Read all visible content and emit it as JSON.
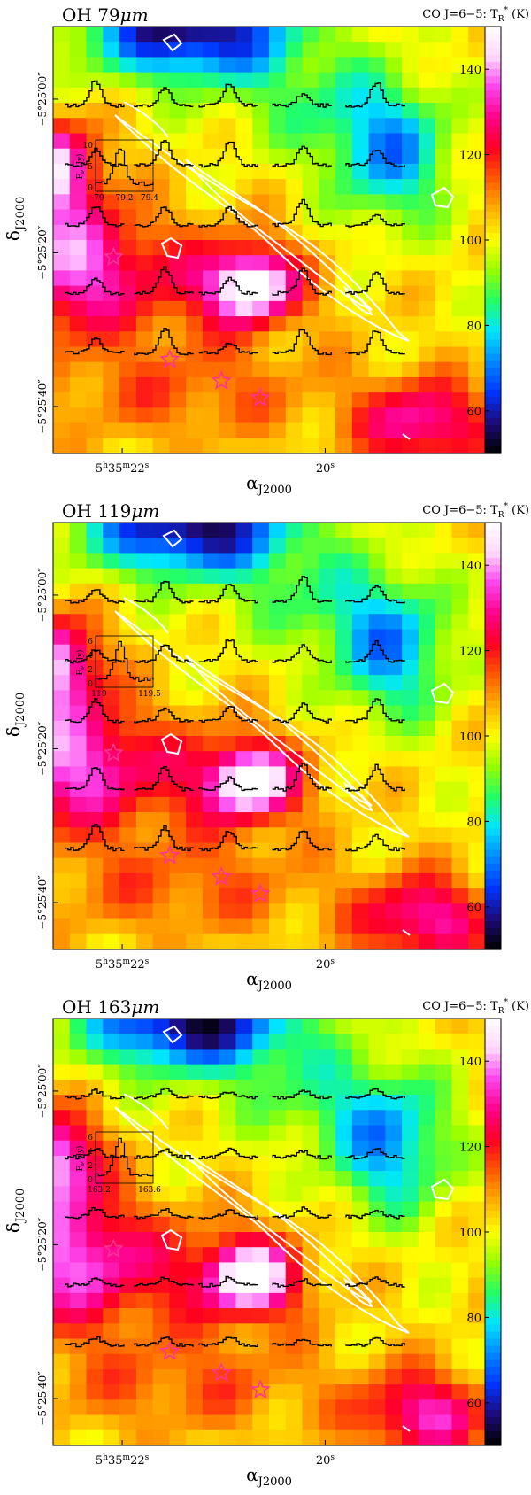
{
  "figure": {
    "background": "#ffffff"
  },
  "colorscale": {
    "label": "CO J=6−5: T",
    "label_sub": "R",
    "label_sup": "*",
    "label_unit": " (K)",
    "ticks": [
      60,
      80,
      100,
      120,
      140
    ],
    "range": [
      50,
      150
    ],
    "stops": [
      "#000000",
      "#1e0a78",
      "#0033ff",
      "#0088ff",
      "#00e5ff",
      "#22ff66",
      "#99ff00",
      "#ffff00",
      "#ffb000",
      "#ff5a00",
      "#ff0020",
      "#ff0088",
      "#ff44ee",
      "#ffd8ff",
      "#ffffff"
    ]
  },
  "axes": {
    "ylabel": "δ",
    "ylabel_sub": "J2000",
    "xlabel": "α",
    "xlabel_sub": "J2000",
    "xticks": [
      {
        "h": "5",
        "hs": "h",
        "m": "35",
        "ms": "m",
        "s": "22",
        "ss": "s",
        "frac": 0.16
      },
      {
        "h": "",
        "hs": "",
        "m": "",
        "ms": "",
        "s": "20",
        "ss": "s",
        "frac": 0.63
      }
    ],
    "yticks": [
      {
        "label": "−5°25′00″",
        "frac": 0.17
      },
      {
        "label": "−5°25′20″",
        "frac": 0.53
      },
      {
        "label": "−5°25′40″",
        "frac": 0.89
      }
    ]
  },
  "chart_data": [
    {
      "type": "heatmap",
      "title": "OH 79μm",
      "title_main": "OH 79",
      "title_unit": "μm",
      "inset": {
        "ylabel": "F",
        "ylabel_sub": "ν",
        "ylabel_unit": "(Jy)",
        "yticks": [
          "0",
          "5",
          "10"
        ],
        "xticks": [
          "79",
          "79.2",
          "79.4"
        ]
      },
      "map_variant": 0
    },
    {
      "type": "heatmap",
      "title": "OH 119μm",
      "title_main": "OH 119",
      "title_unit": "μm",
      "inset": {
        "ylabel": "F",
        "ylabel_sub": "ν",
        "ylabel_unit": "(Jy)",
        "yticks": [
          "0",
          "2",
          "4",
          "6"
        ],
        "xticks": [
          "119",
          "119.5"
        ]
      },
      "map_variant": 1
    },
    {
      "type": "heatmap",
      "title": "OH 163μm",
      "title_main": "OH 163",
      "title_unit": "μm",
      "inset": {
        "ylabel": "F",
        "ylabel_sub": "ν",
        "ylabel_unit": "(Jy)",
        "yticks": [
          "0",
          "2",
          "4",
          "6"
        ],
        "xticks": [
          "163.2",
          "163.6"
        ]
      },
      "map_variant": 2
    }
  ],
  "colors": {
    "contour": "#ffffff",
    "spectrum": "#000000",
    "star": "#ff3399"
  }
}
